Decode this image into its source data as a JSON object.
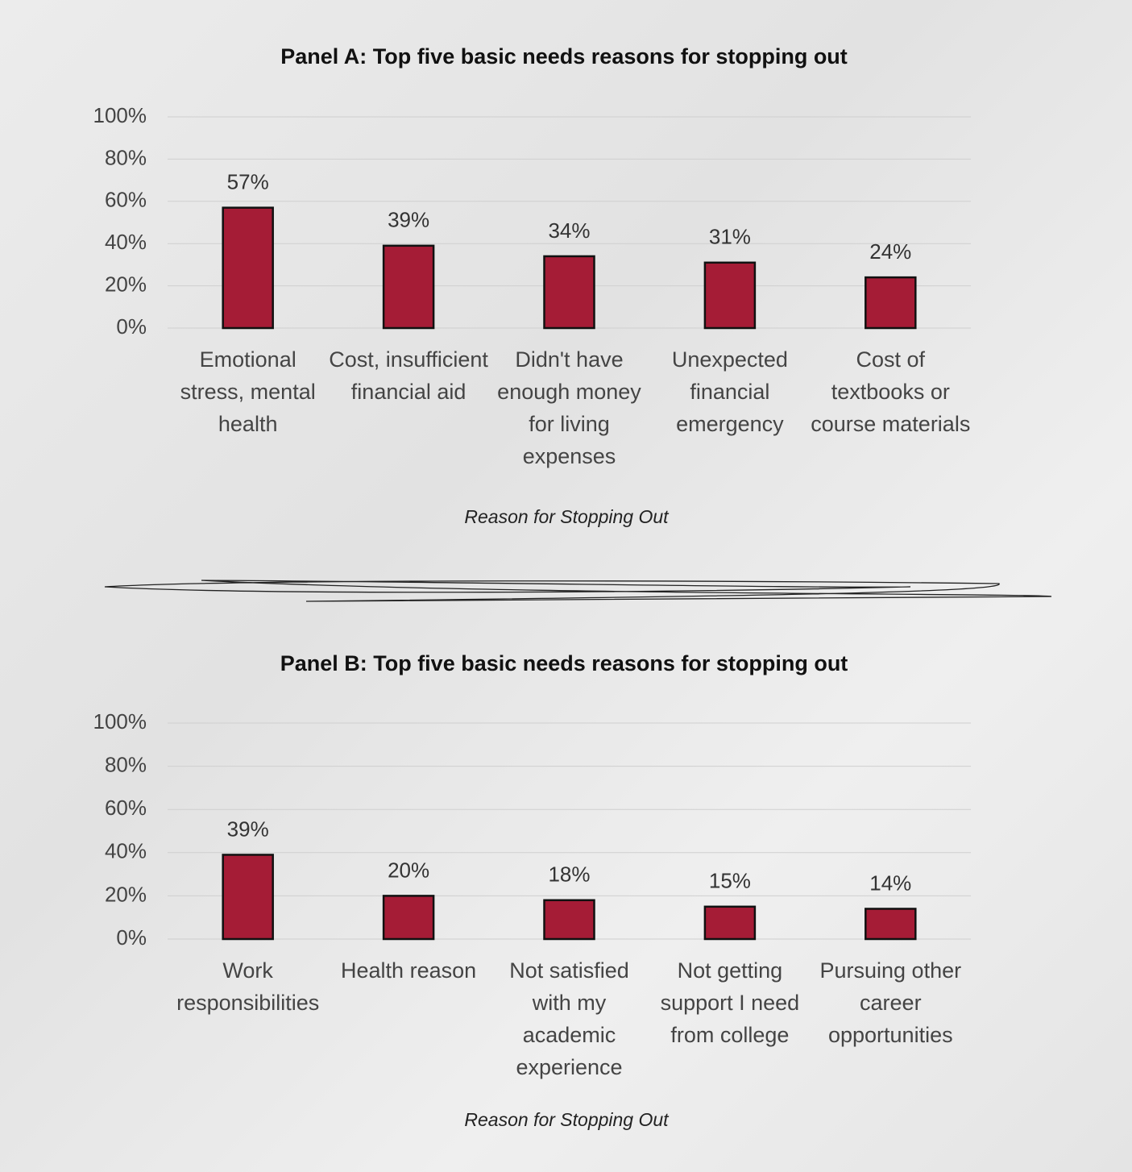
{
  "chart_data": [
    {
      "type": "bar",
      "title": "Panel A: Top five basic needs reasons for stopping out",
      "x_label": "Reason for Stopping Out",
      "categories": [
        "Emotional stress, mental health",
        "Cost, insufficient financial aid",
        "Didn't have enough money for living expenses",
        "Unexpected financial emergency",
        "Cost of textbooks or course materials"
      ],
      "values": [
        57,
        39,
        34,
        31,
        24
      ],
      "value_labels": [
        "57%",
        "39%",
        "34%",
        "31%",
        "24%"
      ],
      "color": "#a51c36",
      "ylim": [
        0,
        100
      ],
      "yticks": [
        {
          "value": 0,
          "label": "0%"
        },
        {
          "value": 20,
          "label": "20%"
        },
        {
          "value": 40,
          "label": "40%"
        },
        {
          "value": 60,
          "label": "60%"
        },
        {
          "value": 80,
          "label": "80%"
        },
        {
          "value": 100,
          "label": "100%"
        }
      ],
      "grid": true
    },
    {
      "type": "bar",
      "title": "Panel B: Top five basic needs reasons for stopping out",
      "x_label": "Reason for Stopping Out",
      "categories": [
        "Work responsibilities",
        "Health reason",
        "Not satisfied with my academic experience",
        "Not getting support I need from college",
        "Pursuing other career opportunities"
      ],
      "values": [
        39,
        20,
        18,
        15,
        14
      ],
      "value_labels": [
        "39%",
        "20%",
        "18%",
        "15%",
        "14%"
      ],
      "color": "#a51c36",
      "ylim": [
        0,
        100
      ],
      "yticks": [
        {
          "value": 0,
          "label": "0%"
        },
        {
          "value": 20,
          "label": "20%"
        },
        {
          "value": 40,
          "label": "40%"
        },
        {
          "value": 60,
          "label": "60%"
        },
        {
          "value": 80,
          "label": "80%"
        },
        {
          "value": 100,
          "label": "100%"
        }
      ],
      "grid": true
    }
  ]
}
